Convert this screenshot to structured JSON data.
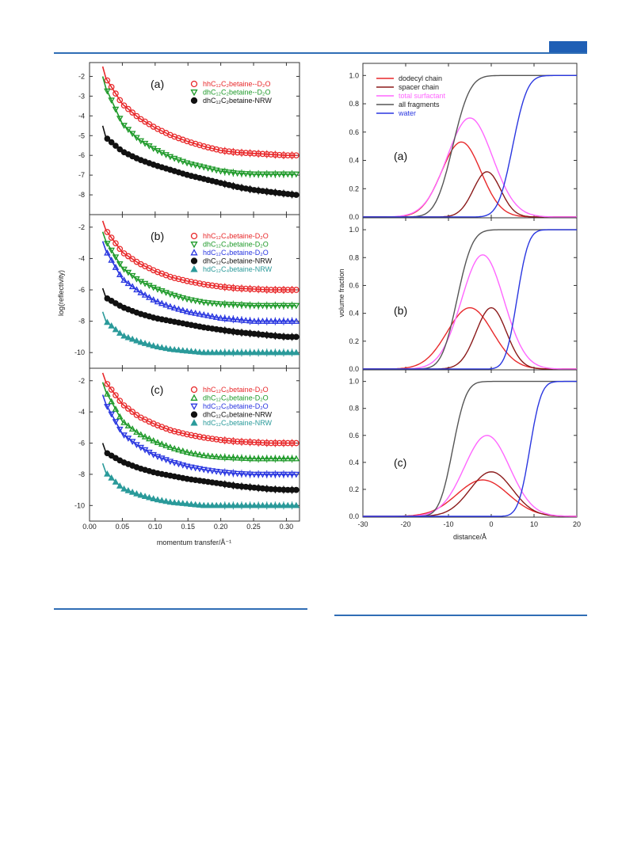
{
  "page": {
    "accent_color": "#2f6db5"
  },
  "chart_data": [
    {
      "type": "scatter",
      "figure": "left",
      "xlabel": "momentum transfer/Å⁻¹",
      "ylabel": "log(reflectivity)",
      "xlim": [
        0.0,
        0.32
      ],
      "xticks": [
        "0.00",
        "0.05",
        "0.10",
        "0.15",
        "0.20",
        "0.25",
        "0.30"
      ],
      "panels": [
        {
          "label": "(a)",
          "ylim": [
            -9,
            -1.3
          ],
          "yticks": [
            "-2",
            "-3",
            "-4",
            "-5",
            "-6",
            "-7",
            "-8"
          ],
          "legend_position": "top-right",
          "series": [
            {
              "name": "hhC₁₂C₂betaine--D₂O",
              "marker": "open-circle",
              "color": "#e8292b",
              "x": [
                0.025,
                0.05,
                0.075,
                0.1,
                0.125,
                0.15,
                0.175,
                0.2,
                0.225,
                0.25,
                0.275,
                0.3,
                0.315
              ],
              "y": [
                -2.1,
                -3.4,
                -4.1,
                -4.6,
                -5.0,
                -5.3,
                -5.55,
                -5.75,
                -5.85,
                -5.9,
                -5.95,
                -6.0,
                -6.0
              ]
            },
            {
              "name": "dhC₁₂C₂betaine--D₂O",
              "marker": "open-triangle-down",
              "color": "#1f9a2a",
              "x": [
                0.025,
                0.05,
                0.075,
                0.1,
                0.125,
                0.15,
                0.175,
                0.2,
                0.225,
                0.25,
                0.275,
                0.3,
                0.315
              ],
              "y": [
                -2.6,
                -4.4,
                -5.2,
                -5.7,
                -6.1,
                -6.4,
                -6.6,
                -6.8,
                -6.9,
                -6.95,
                -6.95,
                -6.95,
                -6.95
              ]
            },
            {
              "name": "dhC₁₂C₂betaine-NRW",
              "marker": "filled-circle",
              "color": "#111111",
              "x": [
                0.025,
                0.05,
                0.075,
                0.1,
                0.125,
                0.15,
                0.175,
                0.2,
                0.225,
                0.25,
                0.275,
                0.3,
                0.315
              ],
              "y": [
                -5.1,
                -5.8,
                -6.2,
                -6.5,
                -6.75,
                -7.0,
                -7.2,
                -7.4,
                -7.6,
                -7.75,
                -7.85,
                -7.95,
                -8.0
              ]
            }
          ]
        },
        {
          "label": "(b)",
          "ylim": [
            -11,
            -1.2
          ],
          "yticks": [
            "-2",
            "-4",
            "-6",
            "-8",
            "-10"
          ],
          "legend_position": "top-right",
          "series": [
            {
              "name": "hhC₁₂C₄betaine-D₂O",
              "marker": "open-circle",
              "color": "#e8292b",
              "x": [
                0.025,
                0.05,
                0.075,
                0.1,
                0.125,
                0.15,
                0.175,
                0.2,
                0.225,
                0.25,
                0.275,
                0.3,
                0.315
              ],
              "y": [
                -2.2,
                -3.6,
                -4.3,
                -4.8,
                -5.2,
                -5.45,
                -5.65,
                -5.8,
                -5.9,
                -5.95,
                -6.0,
                -6.0,
                -6.0
              ]
            },
            {
              "name": "dhC₁₂C₄betaine-D₂O",
              "marker": "open-triangle-down",
              "color": "#1f9a2a",
              "x": [
                0.025,
                0.05,
                0.075,
                0.1,
                0.125,
                0.15,
                0.175,
                0.2,
                0.225,
                0.25,
                0.275,
                0.3,
                0.315
              ],
              "y": [
                -2.9,
                -4.6,
                -5.4,
                -5.9,
                -6.3,
                -6.6,
                -6.8,
                -6.9,
                -6.95,
                -7.0,
                -7.0,
                -7.0,
                -7.0
              ]
            },
            {
              "name": "hdC₁₂C₄betaine-D₂O",
              "marker": "open-triangle-up",
              "color": "#2a37e0",
              "x": [
                0.025,
                0.05,
                0.075,
                0.1,
                0.125,
                0.15,
                0.175,
                0.2,
                0.225,
                0.25,
                0.275,
                0.3,
                0.315
              ],
              "y": [
                -3.5,
                -5.3,
                -6.1,
                -6.7,
                -7.1,
                -7.4,
                -7.6,
                -7.8,
                -7.9,
                -8.0,
                -8.0,
                -8.0,
                -8.0
              ]
            },
            {
              "name": "dhC₁₂C₄betaine-NRW",
              "marker": "filled-circle",
              "color": "#111111",
              "x": [
                0.025,
                0.05,
                0.075,
                0.1,
                0.125,
                0.15,
                0.175,
                0.2,
                0.225,
                0.25,
                0.275,
                0.3,
                0.315
              ],
              "y": [
                -6.5,
                -7.1,
                -7.5,
                -7.8,
                -8.0,
                -8.2,
                -8.4,
                -8.55,
                -8.7,
                -8.8,
                -8.9,
                -9.0,
                -9.0
              ]
            },
            {
              "name": "hdC₁₂C₄betaine-NRW",
              "marker": "filled-triangle-up",
              "color": "#2a9a9a",
              "x": [
                0.025,
                0.05,
                0.075,
                0.1,
                0.125,
                0.15,
                0.175,
                0.2,
                0.225,
                0.25,
                0.275,
                0.3,
                0.315
              ],
              "y": [
                -8.0,
                -8.9,
                -9.3,
                -9.6,
                -9.8,
                -9.9,
                -10.0,
                -10.0,
                -10.0,
                -10.0,
                -10.0,
                -10.0,
                -10.0
              ]
            }
          ]
        },
        {
          "label": "(c)",
          "ylim": [
            -11,
            -1.2
          ],
          "yticks": [
            "-2",
            "-4",
            "-6",
            "-8",
            "-10"
          ],
          "legend_position": "top-right",
          "series": [
            {
              "name": "hhC₁₂C₆betaine-D₂O",
              "marker": "open-circle",
              "color": "#e8292b",
              "x": [
                0.025,
                0.05,
                0.075,
                0.1,
                0.125,
                0.15,
                0.175,
                0.2,
                0.225,
                0.25,
                0.275,
                0.3,
                0.315
              ],
              "y": [
                -2.1,
                -3.5,
                -4.3,
                -4.8,
                -5.2,
                -5.45,
                -5.65,
                -5.8,
                -5.9,
                -5.95,
                -6.0,
                -6.0,
                -6.0
              ]
            },
            {
              "name": "dhC₁₂C₆betaine-D₂O",
              "marker": "open-triangle-up",
              "color": "#1f9a2a",
              "x": [
                0.025,
                0.05,
                0.075,
                0.1,
                0.125,
                0.15,
                0.175,
                0.2,
                0.225,
                0.25,
                0.275,
                0.3,
                0.315
              ],
              "y": [
                -2.7,
                -4.6,
                -5.4,
                -5.9,
                -6.3,
                -6.6,
                -6.8,
                -6.9,
                -6.95,
                -7.0,
                -7.0,
                -7.0,
                -7.0
              ]
            },
            {
              "name": "hdC₁₂C₆betaine-D₂O",
              "marker": "open-triangle-down",
              "color": "#2a37e0",
              "x": [
                0.025,
                0.05,
                0.075,
                0.1,
                0.125,
                0.15,
                0.175,
                0.2,
                0.225,
                0.25,
                0.275,
                0.3,
                0.315
              ],
              "y": [
                -3.5,
                -5.4,
                -6.2,
                -6.8,
                -7.2,
                -7.5,
                -7.7,
                -7.85,
                -7.95,
                -8.0,
                -8.0,
                -8.0,
                -8.0
              ]
            },
            {
              "name": "dhC₁₂C₆betaine-NRW",
              "marker": "filled-circle",
              "color": "#111111",
              "x": [
                0.025,
                0.05,
                0.075,
                0.1,
                0.125,
                0.15,
                0.175,
                0.2,
                0.225,
                0.25,
                0.275,
                0.3,
                0.315
              ],
              "y": [
                -6.6,
                -7.2,
                -7.6,
                -7.9,
                -8.1,
                -8.3,
                -8.45,
                -8.6,
                -8.75,
                -8.85,
                -8.95,
                -9.0,
                -9.0
              ]
            },
            {
              "name": "hdC₁₂C₆betaine-NRW",
              "marker": "filled-triangle-up",
              "color": "#2a9a9a",
              "x": [
                0.025,
                0.05,
                0.075,
                0.1,
                0.125,
                0.15,
                0.175,
                0.2,
                0.225,
                0.25,
                0.275,
                0.3,
                0.315
              ],
              "y": [
                -7.9,
                -8.9,
                -9.3,
                -9.6,
                -9.8,
                -9.9,
                -10.0,
                -10.0,
                -10.0,
                -10.0,
                -10.0,
                -10.0,
                -10.0
              ]
            }
          ]
        }
      ]
    },
    {
      "type": "line",
      "figure": "right",
      "xlabel": "distance/Å",
      "ylabel": "volume fraction",
      "xlim": [
        -30,
        20
      ],
      "xticks": [
        "-30",
        "-20",
        "-10",
        "0",
        "10",
        "20"
      ],
      "ylim": [
        0,
        1.08
      ],
      "yticks": [
        "0.0",
        "0.2",
        "0.4",
        "0.6",
        "0.8",
        "1.0"
      ],
      "legend_position": "top-left",
      "legend": [
        {
          "name": "dodecyl chain",
          "color": "#e8292b"
        },
        {
          "name": "spacer chain",
          "color": "#8b1a1a"
        },
        {
          "name": "total surfactant",
          "color": "#ff66ff"
        },
        {
          "name": "all fragments",
          "color": "#555555"
        },
        {
          "name": "water",
          "color": "#2a37e0"
        }
      ],
      "panels": [
        {
          "label": "(a)",
          "series": [
            {
              "name": "dodecyl chain",
              "peak": 0.53,
              "center": -7,
              "width": 6.5
            },
            {
              "name": "spacer chain",
              "peak": 0.32,
              "center": -1,
              "width": 4.5
            },
            {
              "name": "total surfactant",
              "peak": 0.7,
              "center": -5,
              "width": 7.5
            },
            {
              "name": "all fragments",
              "step_center": -9,
              "step_width": 4.5
            },
            {
              "name": "water",
              "step_center": 5,
              "step_width": 3.8
            }
          ]
        },
        {
          "label": "(b)",
          "series": [
            {
              "name": "dodecyl chain",
              "peak": 0.44,
              "center": -5,
              "width": 7.5
            },
            {
              "name": "spacer chain",
              "peak": 0.44,
              "center": 0,
              "width": 5.0
            },
            {
              "name": "total surfactant",
              "peak": 0.82,
              "center": -2,
              "width": 7.0
            },
            {
              "name": "all fragments",
              "step_center": -8,
              "step_width": 4.0
            },
            {
              "name": "water",
              "step_center": 6,
              "step_width": 3.0
            }
          ]
        },
        {
          "label": "(c)",
          "series": [
            {
              "name": "dodecyl chain",
              "peak": 0.27,
              "center": -2,
              "width": 8.5
            },
            {
              "name": "spacer chain",
              "peak": 0.33,
              "center": 0,
              "width": 7.0
            },
            {
              "name": "total surfactant",
              "peak": 0.6,
              "center": -1,
              "width": 7.5
            },
            {
              "name": "all fragments",
              "step_center": -9,
              "step_width": 3.5
            },
            {
              "name": "water",
              "step_center": 9,
              "step_width": 3.0
            }
          ]
        }
      ]
    }
  ]
}
